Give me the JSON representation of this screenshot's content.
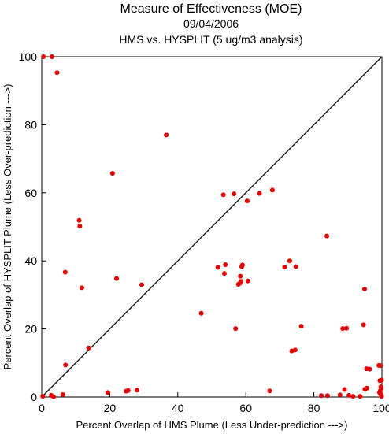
{
  "chart_data": {
    "type": "scatter",
    "title": "Measure of Effectiveness (MOE)",
    "subtitle": "09/04/2006",
    "subtitle2": "HMS vs. HYSPLIT  (5 ug/m3 analysis)",
    "xlabel": "Percent Overlap of HMS Plume (Less Under-prediction --->)",
    "ylabel": "Percent Overlap of HYSPLIT Plume (Less Over-prediction --->)",
    "xlim": [
      0,
      100
    ],
    "ylim": [
      0,
      100
    ],
    "xticks": [
      "0",
      "20",
      "40",
      "60",
      "80",
      "100"
    ],
    "yticks": [
      "0",
      "20",
      "40",
      "60",
      "80",
      "100"
    ],
    "grid": false,
    "reference_line": "diagonal y = x",
    "point_color": "#e60000",
    "points": [
      [
        0.5,
        100
      ],
      [
        3,
        100
      ],
      [
        4.5,
        95.3
      ],
      [
        0.3,
        0.2
      ],
      [
        2.8,
        0.5
      ],
      [
        3.5,
        0.1
      ],
      [
        6.2,
        0.7
      ],
      [
        6.9,
        36.7
      ],
      [
        7.0,
        9.4
      ],
      [
        11.0,
        51.9
      ],
      [
        11.2,
        50.2
      ],
      [
        11.8,
        32.1
      ],
      [
        13.8,
        14.4
      ],
      [
        19.4,
        1.3
      ],
      [
        20.8,
        65.7
      ],
      [
        22.0,
        34.8
      ],
      [
        24.8,
        1.7
      ],
      [
        25.4,
        1.9
      ],
      [
        28.0,
        2.0
      ],
      [
        29.4,
        33.0
      ],
      [
        36.6,
        77.0
      ],
      [
        46.9,
        24.6
      ],
      [
        51.8,
        38.1
      ],
      [
        53.4,
        59.4
      ],
      [
        53.7,
        36.3
      ],
      [
        54.0,
        38.9
      ],
      [
        56.5,
        59.7
      ],
      [
        57.0,
        20.1
      ],
      [
        57.8,
        33.1
      ],
      [
        58.2,
        33.4
      ],
      [
        58.4,
        35.5
      ],
      [
        58.6,
        34.0
      ],
      [
        58.8,
        38.3
      ],
      [
        59.0,
        38.8
      ],
      [
        60.4,
        57.6
      ],
      [
        60.6,
        34.1
      ],
      [
        64.0,
        59.8
      ],
      [
        67.0,
        1.8
      ],
      [
        67.8,
        60.8
      ],
      [
        71.4,
        38.2
      ],
      [
        72.9,
        40.0
      ],
      [
        73.5,
        13.5
      ],
      [
        74.5,
        13.8
      ],
      [
        74.7,
        38.3
      ],
      [
        76.3,
        20.8
      ],
      [
        82.2,
        0.4
      ],
      [
        83.8,
        47.3
      ],
      [
        84.0,
        0.4
      ],
      [
        87.7,
        0.6
      ],
      [
        88.5,
        20.1
      ],
      [
        89.0,
        2.2
      ],
      [
        89.6,
        20.2
      ],
      [
        90.3,
        0.5
      ],
      [
        91.5,
        0.2
      ],
      [
        93.6,
        0.2
      ],
      [
        94.6,
        21.2
      ],
      [
        94.9,
        31.7
      ],
      [
        95.0,
        2.3
      ],
      [
        95.5,
        8.3
      ],
      [
        95.6,
        2.6
      ],
      [
        96.4,
        8.2
      ],
      [
        99.1,
        9.3
      ],
      [
        99.6,
        9.2
      ],
      [
        99.4,
        4.8
      ],
      [
        99.9,
        5.0
      ],
      [
        99.7,
        3.0
      ],
      [
        99.8,
        2.5
      ],
      [
        99.3,
        1.3
      ],
      [
        99.6,
        0.9
      ],
      [
        99.8,
        0.5
      ],
      [
        99.9,
        0.2
      ],
      [
        99.5,
        1.8
      ]
    ]
  }
}
